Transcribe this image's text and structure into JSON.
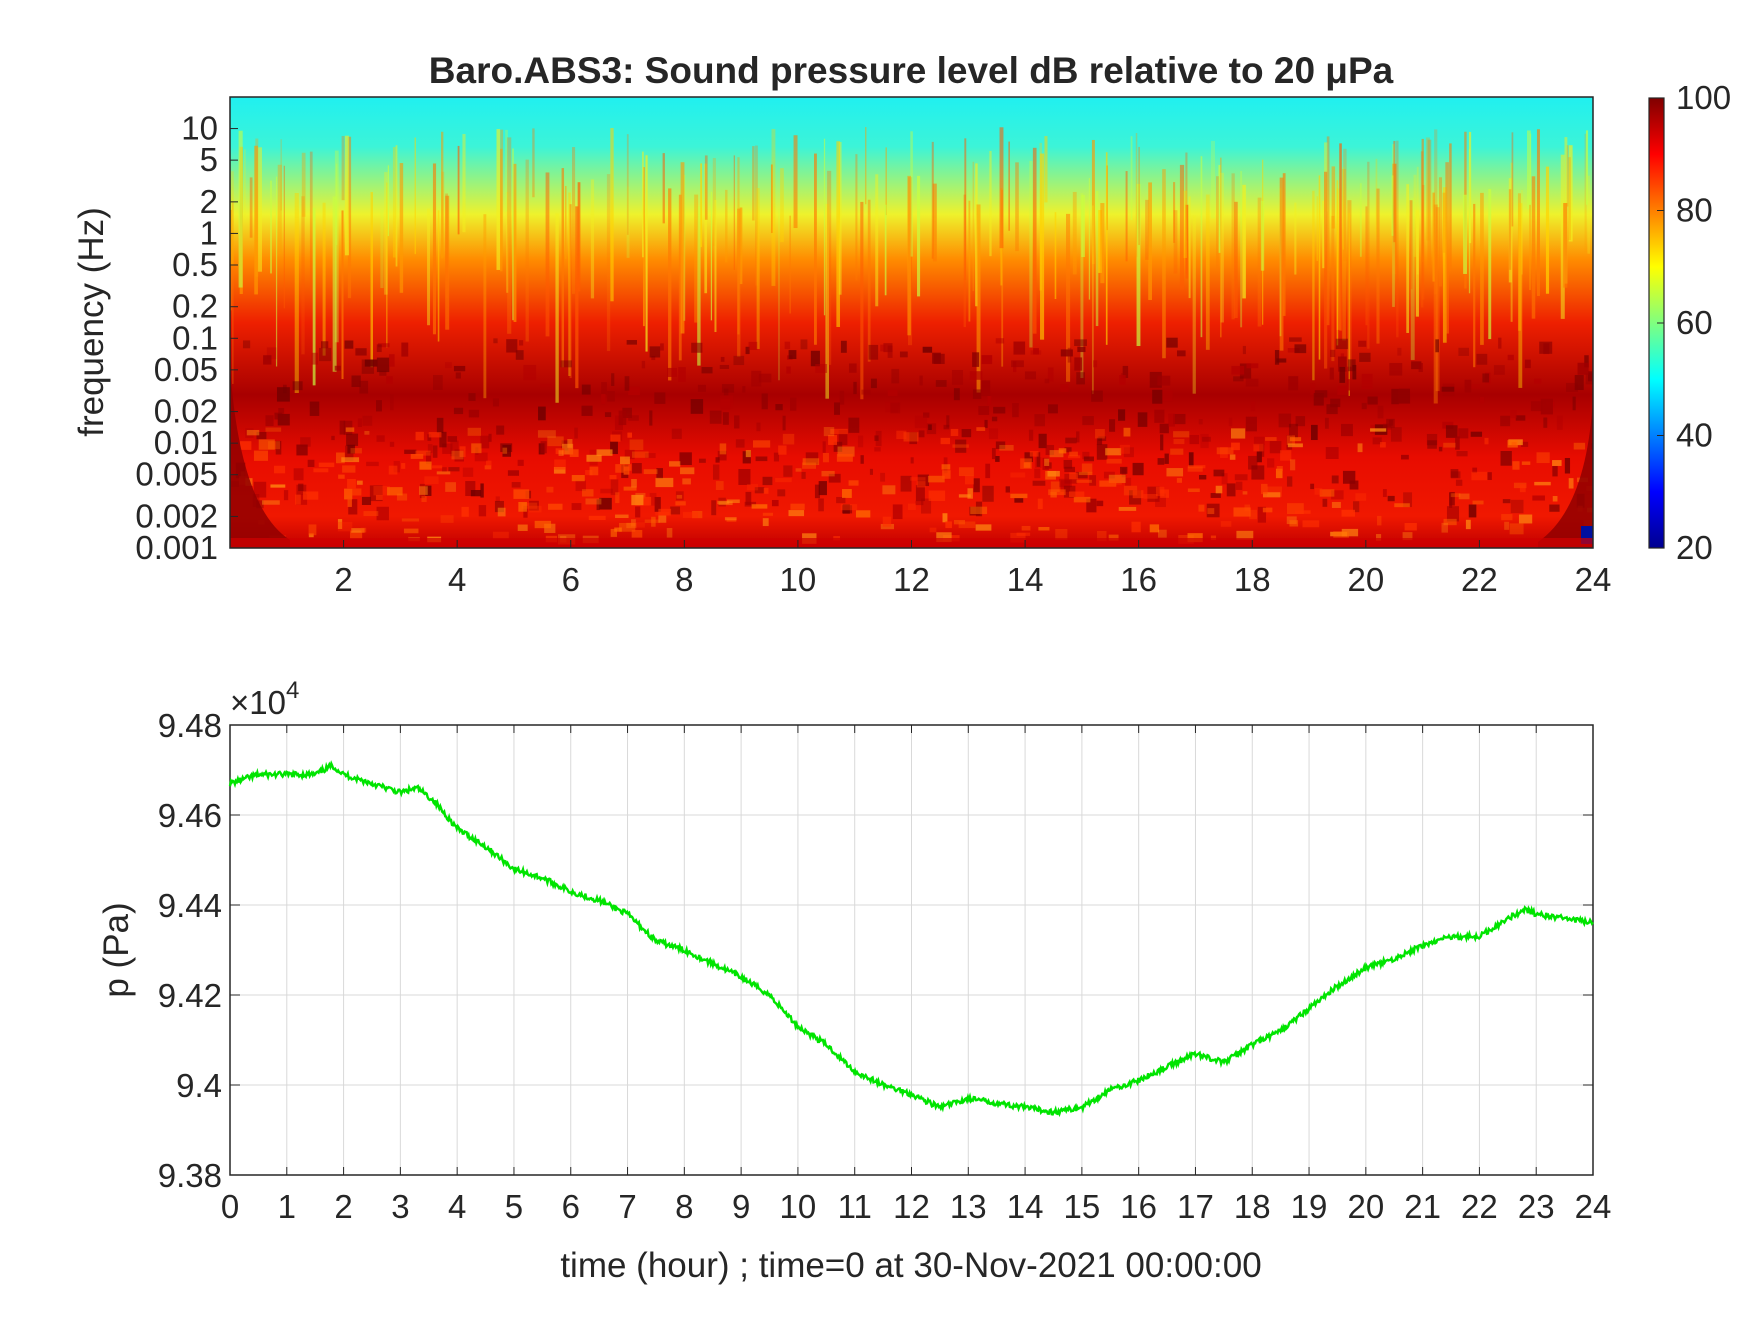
{
  "chart_data": [
    {
      "type": "heatmap",
      "title": "Baro.ABS3: Sound pressure level dB relative to 20 μPa",
      "xlabel": "",
      "ylabel": "frequency (Hz)",
      "x_range": [
        0,
        24
      ],
      "x_ticks": [
        "2",
        "4",
        "6",
        "8",
        "10",
        "12",
        "14",
        "16",
        "18",
        "20",
        "22",
        "24"
      ],
      "y_scale": "log",
      "y_range": [
        0.001,
        20
      ],
      "y_ticks": [
        "10",
        "5",
        "2",
        "1",
        "0.5",
        "0.2",
        "0.1",
        "0.05",
        "0.02",
        "0.01",
        "0.005",
        "0.002",
        "0.001"
      ],
      "colorbar": {
        "colormap": "jet",
        "range": [
          20,
          100
        ],
        "ticks": [
          "100",
          "80",
          "60",
          "40",
          "20"
        ]
      },
      "description_values": {
        "high_frequency_level_db": 50,
        "mid_frequency_level_db": 75,
        "low_frequency_level_db": 92
      }
    },
    {
      "type": "line",
      "title": "",
      "xlabel": "time (hour) ; time=0 at 30-Nov-2021 00:00:00",
      "ylabel": "p (Pa)",
      "y_multiplier_label": "×10",
      "y_multiplier_exp": "4",
      "xlim": [
        0,
        24
      ],
      "ylim": [
        9.38,
        9.48
      ],
      "x_ticks": [
        "0",
        "1",
        "2",
        "3",
        "4",
        "5",
        "6",
        "7",
        "8",
        "9",
        "10",
        "11",
        "12",
        "13",
        "14",
        "15",
        "16",
        "17",
        "18",
        "19",
        "20",
        "21",
        "22",
        "23",
        "24"
      ],
      "y_ticks": [
        "9.48",
        "9.46",
        "9.44",
        "9.42",
        "9.4",
        "9.38"
      ],
      "grid": true,
      "series": [
        {
          "color": "#00e400",
          "x": [
            0,
            0.5,
            1,
            1.5,
            1.8,
            2,
            2.5,
            3,
            3.3,
            3.6,
            4,
            4.5,
            5,
            5.5,
            6,
            6.5,
            7,
            7.5,
            8,
            8.5,
            9,
            9.5,
            10,
            10.5,
            11,
            11.5,
            12,
            12.5,
            13,
            13.5,
            14,
            14.5,
            15,
            15.5,
            16,
            16.5,
            17,
            17.5,
            18,
            18.5,
            19,
            19.5,
            20,
            20.5,
            21,
            21.5,
            22,
            22.5,
            22.8,
            23,
            23.5,
            24
          ],
          "y": [
            9.467,
            9.469,
            9.469,
            9.469,
            9.471,
            9.469,
            9.467,
            9.465,
            9.466,
            9.463,
            9.457,
            9.453,
            9.448,
            9.446,
            9.443,
            9.441,
            9.438,
            9.432,
            9.43,
            9.427,
            9.424,
            9.42,
            9.413,
            9.409,
            9.403,
            9.4,
            9.398,
            9.395,
            9.397,
            9.396,
            9.395,
            9.394,
            9.395,
            9.399,
            9.401,
            9.404,
            9.407,
            9.405,
            9.409,
            9.412,
            9.417,
            9.422,
            9.426,
            9.428,
            9.431,
            9.433,
            9.433,
            9.437,
            9.439,
            9.438,
            9.437,
            9.436
          ]
        }
      ]
    }
  ]
}
